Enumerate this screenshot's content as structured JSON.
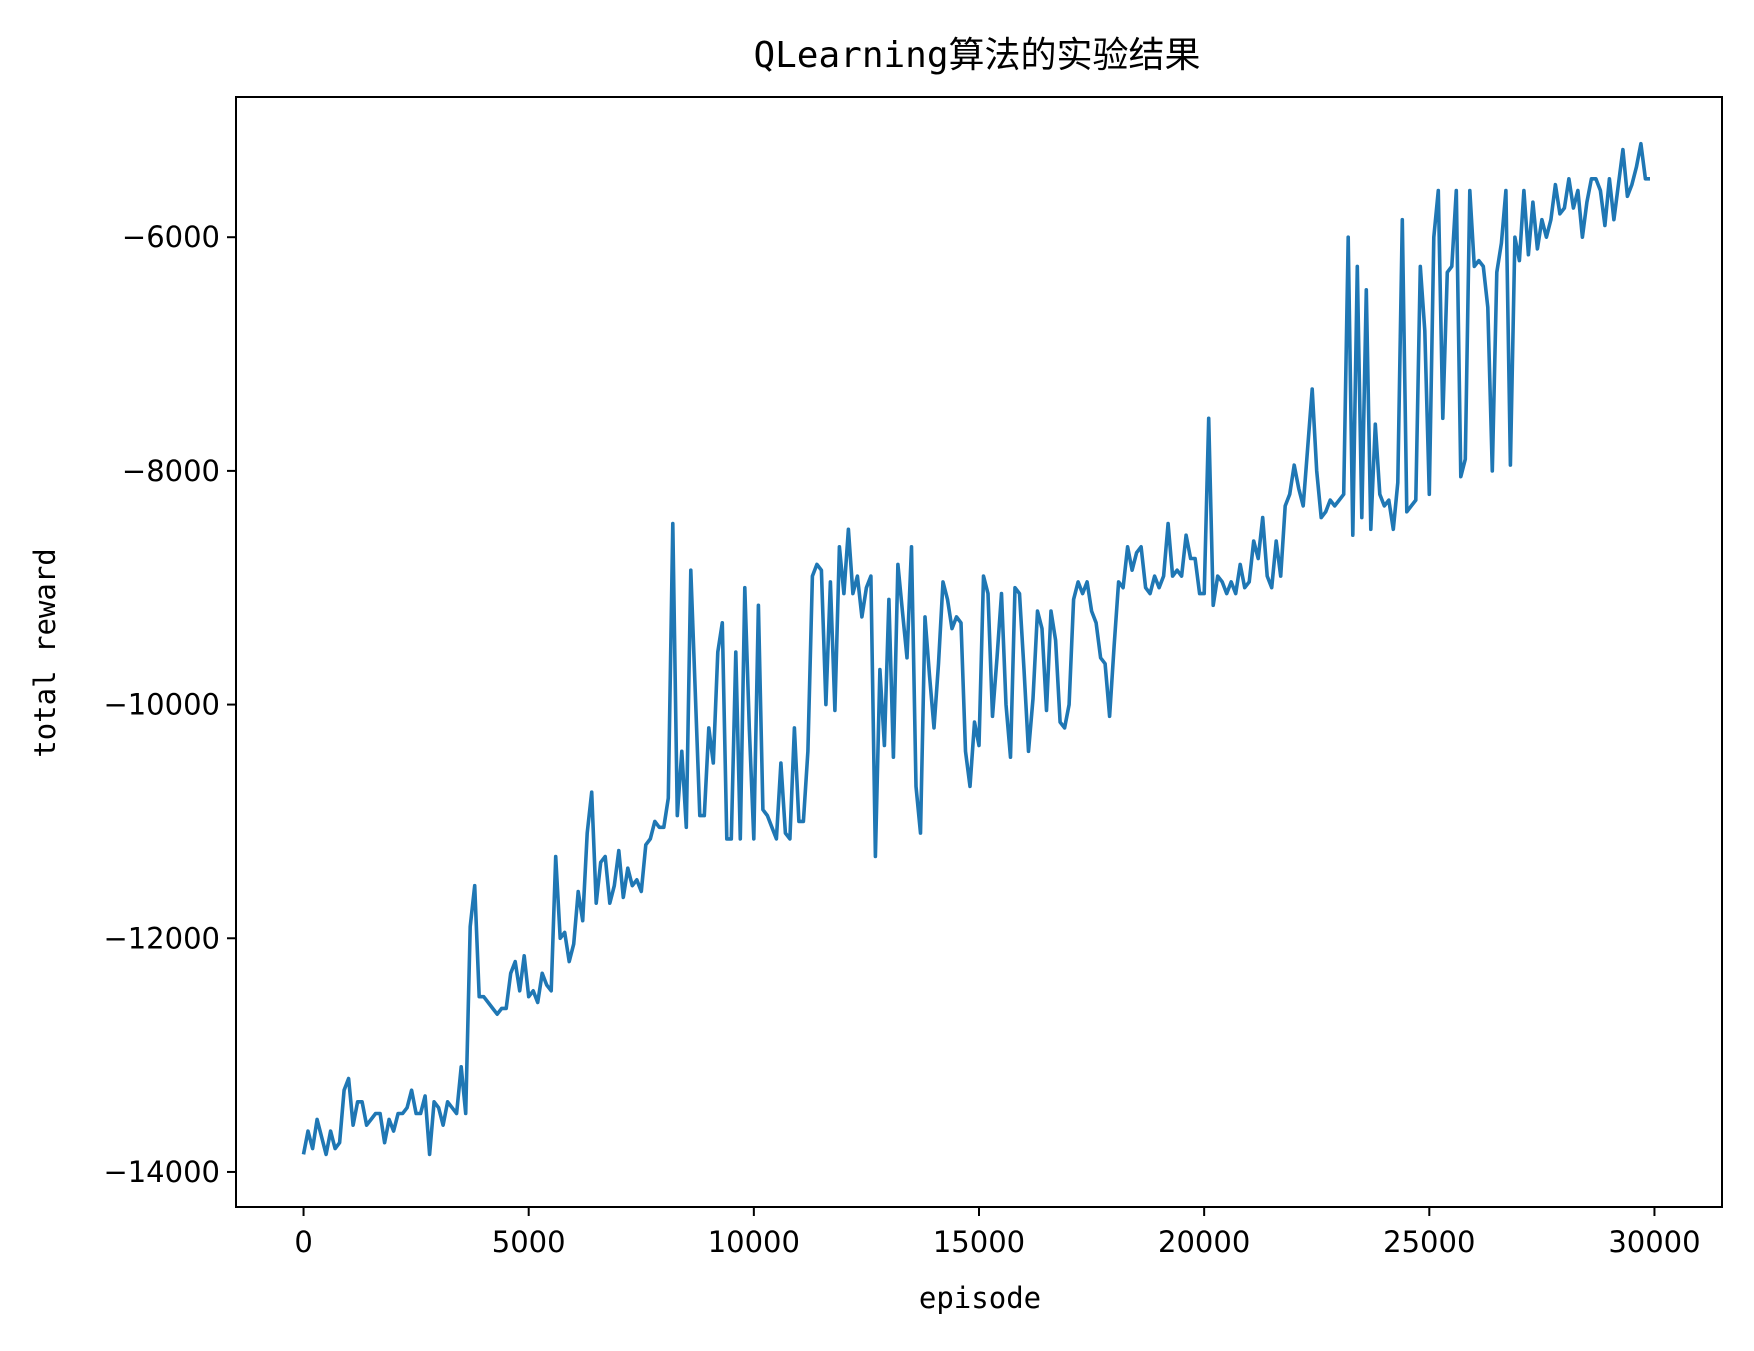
{
  "chart_data": {
    "type": "line",
    "title": "QLearning算法的实验结果",
    "xlabel": "episode",
    "ylabel": "total reward",
    "xlim": [
      -1500,
      31500
    ],
    "ylim": [
      -14300,
      -4800
    ],
    "xticks": [
      0,
      5000,
      10000,
      15000,
      20000,
      25000,
      30000
    ],
    "yticks": [
      -14000,
      -12000,
      -10000,
      -8000,
      -6000
    ],
    "xtick_labels": [
      "0",
      "5000",
      "10000",
      "15000",
      "20000",
      "25000",
      "30000"
    ],
    "ytick_labels": [
      "−14000",
      "−12000",
      "−10000",
      "−8000",
      "−6000"
    ],
    "grid": false,
    "series": [
      {
        "color": "#1f77b4",
        "x": [
          0,
          100,
          200,
          300,
          400,
          500,
          600,
          700,
          800,
          900,
          1000,
          1100,
          1200,
          1300,
          1400,
          1500,
          1600,
          1700,
          1800,
          1900,
          2000,
          2100,
          2200,
          2300,
          2400,
          2500,
          2600,
          2700,
          2800,
          2900,
          3000,
          3100,
          3200,
          3300,
          3400,
          3500,
          3600,
          3700,
          3800,
          3900,
          4000,
          4100,
          4200,
          4300,
          4400,
          4500,
          4600,
          4700,
          4800,
          4900,
          5000,
          5100,
          5200,
          5300,
          5400,
          5500,
          5600,
          5700,
          5800,
          5900,
          6000,
          6100,
          6200,
          6300,
          6400,
          6500,
          6600,
          6700,
          6800,
          6900,
          7000,
          7100,
          7200,
          7300,
          7400,
          7500,
          7600,
          7700,
          7800,
          7900,
          8000,
          8100,
          8200,
          8300,
          8400,
          8500,
          8600,
          8700,
          8800,
          8900,
          9000,
          9100,
          9200,
          9300,
          9400,
          9500,
          9600,
          9700,
          9800,
          9900,
          10000,
          10100,
          10200,
          10300,
          10400,
          10500,
          10600,
          10700,
          10800,
          10900,
          11000,
          11100,
          11200,
          11300,
          11400,
          11500,
          11600,
          11700,
          11800,
          11900,
          12000,
          12100,
          12200,
          12300,
          12400,
          12500,
          12600,
          12700,
          12800,
          12900,
          13000,
          13100,
          13200,
          13300,
          13400,
          13500,
          13600,
          13700,
          13800,
          13900,
          14000,
          14100,
          14200,
          14300,
          14400,
          14500,
          14600,
          14700,
          14800,
          14900,
          15000,
          15100,
          15200,
          15300,
          15400,
          15500,
          15600,
          15700,
          15800,
          15900,
          16000,
          16100,
          16200,
          16300,
          16400,
          16500,
          16600,
          16700,
          16800,
          16900,
          17000,
          17100,
          17200,
          17300,
          17400,
          17500,
          17600,
          17700,
          17800,
          17900,
          18000,
          18100,
          18200,
          18300,
          18400,
          18500,
          18600,
          18700,
          18800,
          18900,
          19000,
          19100,
          19200,
          19300,
          19400,
          19500,
          19600,
          19700,
          19800,
          19900,
          20000,
          20100,
          20200,
          20300,
          20400,
          20500,
          20600,
          20700,
          20800,
          20900,
          21000,
          21100,
          21200,
          21300,
          21400,
          21500,
          21600,
          21700,
          21800,
          21900,
          22000,
          22100,
          22200,
          22300,
          22400,
          22500,
          22600,
          22700,
          22800,
          22900,
          23000,
          23100,
          23200,
          23300,
          23400,
          23500,
          23600,
          23700,
          23800,
          23900,
          24000,
          24100,
          24200,
          24300,
          24400,
          24500,
          24600,
          24700,
          24800,
          24900,
          25000,
          25100,
          25200,
          25300,
          25400,
          25500,
          25600,
          25700,
          25800,
          25900,
          26000,
          26100,
          26200,
          26300,
          26400,
          26500,
          26600,
          26700,
          26800,
          26900,
          27000,
          27100,
          27200,
          27300,
          27400,
          27500,
          27600,
          27700,
          27800,
          27900,
          28000,
          28100,
          28200,
          28300,
          28400,
          28500,
          28600,
          28700,
          28800,
          28900,
          29000,
          29100,
          29200,
          29300,
          29400,
          29500,
          29600,
          29700,
          29800,
          29900
        ],
        "y": [
          -13850,
          -13650,
          -13800,
          -13550,
          -13700,
          -13850,
          -13650,
          -13800,
          -13750,
          -13300,
          -13200,
          -13600,
          -13400,
          -13400,
          -13600,
          -13550,
          -13500,
          -13500,
          -13750,
          -13550,
          -13650,
          -13500,
          -13500,
          -13450,
          -13300,
          -13500,
          -13500,
          -13350,
          -13850,
          -13400,
          -13450,
          -13600,
          -13400,
          -13450,
          -13500,
          -13100,
          -13500,
          -11900,
          -11550,
          -12500,
          -12500,
          -12550,
          -12600,
          -12650,
          -12600,
          -12600,
          -12300,
          -12200,
          -12450,
          -12150,
          -12500,
          -12450,
          -12550,
          -12300,
          -12400,
          -12450,
          -11300,
          -12000,
          -11950,
          -12200,
          -12050,
          -11600,
          -11850,
          -11100,
          -10750,
          -11700,
          -11350,
          -11300,
          -11700,
          -11550,
          -11250,
          -11650,
          -11400,
          -11550,
          -11500,
          -11600,
          -11200,
          -11150,
          -11000,
          -11050,
          -11050,
          -10800,
          -8450,
          -10950,
          -10400,
          -11050,
          -8850,
          -9900,
          -10950,
          -10950,
          -10200,
          -10500,
          -9550,
          -9300,
          -11150,
          -11150,
          -9550,
          -11150,
          -9000,
          -10200,
          -11150,
          -9150,
          -10900,
          -10950,
          -11050,
          -11150,
          -10500,
          -11100,
          -11150,
          -10200,
          -11000,
          -11000,
          -10400,
          -8900,
          -8800,
          -8850,
          -10000,
          -8950,
          -10050,
          -8650,
          -9050,
          -8500,
          -9050,
          -8900,
          -9250,
          -9000,
          -8900,
          -11300,
          -9700,
          -10350,
          -9100,
          -10450,
          -8800,
          -9200,
          -9600,
          -8650,
          -10700,
          -11100,
          -9250,
          -9750,
          -10200,
          -9650,
          -8950,
          -9100,
          -9350,
          -9250,
          -9300,
          -10400,
          -10700,
          -10150,
          -10350,
          -8900,
          -9050,
          -10100,
          -9600,
          -9050,
          -10000,
          -10450,
          -9000,
          -9050,
          -9700,
          -10400,
          -9950,
          -9200,
          -9350,
          -10050,
          -9200,
          -9450,
          -10150,
          -10200,
          -10000,
          -9100,
          -8950,
          -9050,
          -8950,
          -9200,
          -9300,
          -9600,
          -9650,
          -10100,
          -9500,
          -8950,
          -9000,
          -8650,
          -8850,
          -8700,
          -8650,
          -9000,
          -9050,
          -8900,
          -9000,
          -8900,
          -8450,
          -8900,
          -8850,
          -8900,
          -8550,
          -8750,
          -8750,
          -9050,
          -9050,
          -7550,
          -9150,
          -8900,
          -8950,
          -9050,
          -8950,
          -9050,
          -8800,
          -9000,
          -8950,
          -8600,
          -8750,
          -8400,
          -8900,
          -9000,
          -8600,
          -8900,
          -8300,
          -8200,
          -7950,
          -8150,
          -8300,
          -7800,
          -7300,
          -8000,
          -8400,
          -8350,
          -8250,
          -8300,
          -8250,
          -8200,
          -6000,
          -8550,
          -6250,
          -8400,
          -6450,
          -8500,
          -7600,
          -8200,
          -8300,
          -8250,
          -8500,
          -8100,
          -5850,
          -8350,
          -8300,
          -8250,
          -6250,
          -6800,
          -8200,
          -6000,
          -5600,
          -7550,
          -6300,
          -6250,
          -5600,
          -8050,
          -7900,
          -5600,
          -6250,
          -6200,
          -6250,
          -6600,
          -8000,
          -6300,
          -6050,
          -5600,
          -7950,
          -6000,
          -6200,
          -5600,
          -6150,
          -5700,
          -6100,
          -5850,
          -6000,
          -5850,
          -5550,
          -5800,
          -5750,
          -5500,
          -5750,
          -5600,
          -6000,
          -5700,
          -5500,
          -5500,
          -5600,
          -5900,
          -5500,
          -5850,
          -5550,
          -5250,
          -5650,
          -5550,
          -5400,
          -5200,
          -5500,
          -5500
        ]
      }
    ]
  }
}
